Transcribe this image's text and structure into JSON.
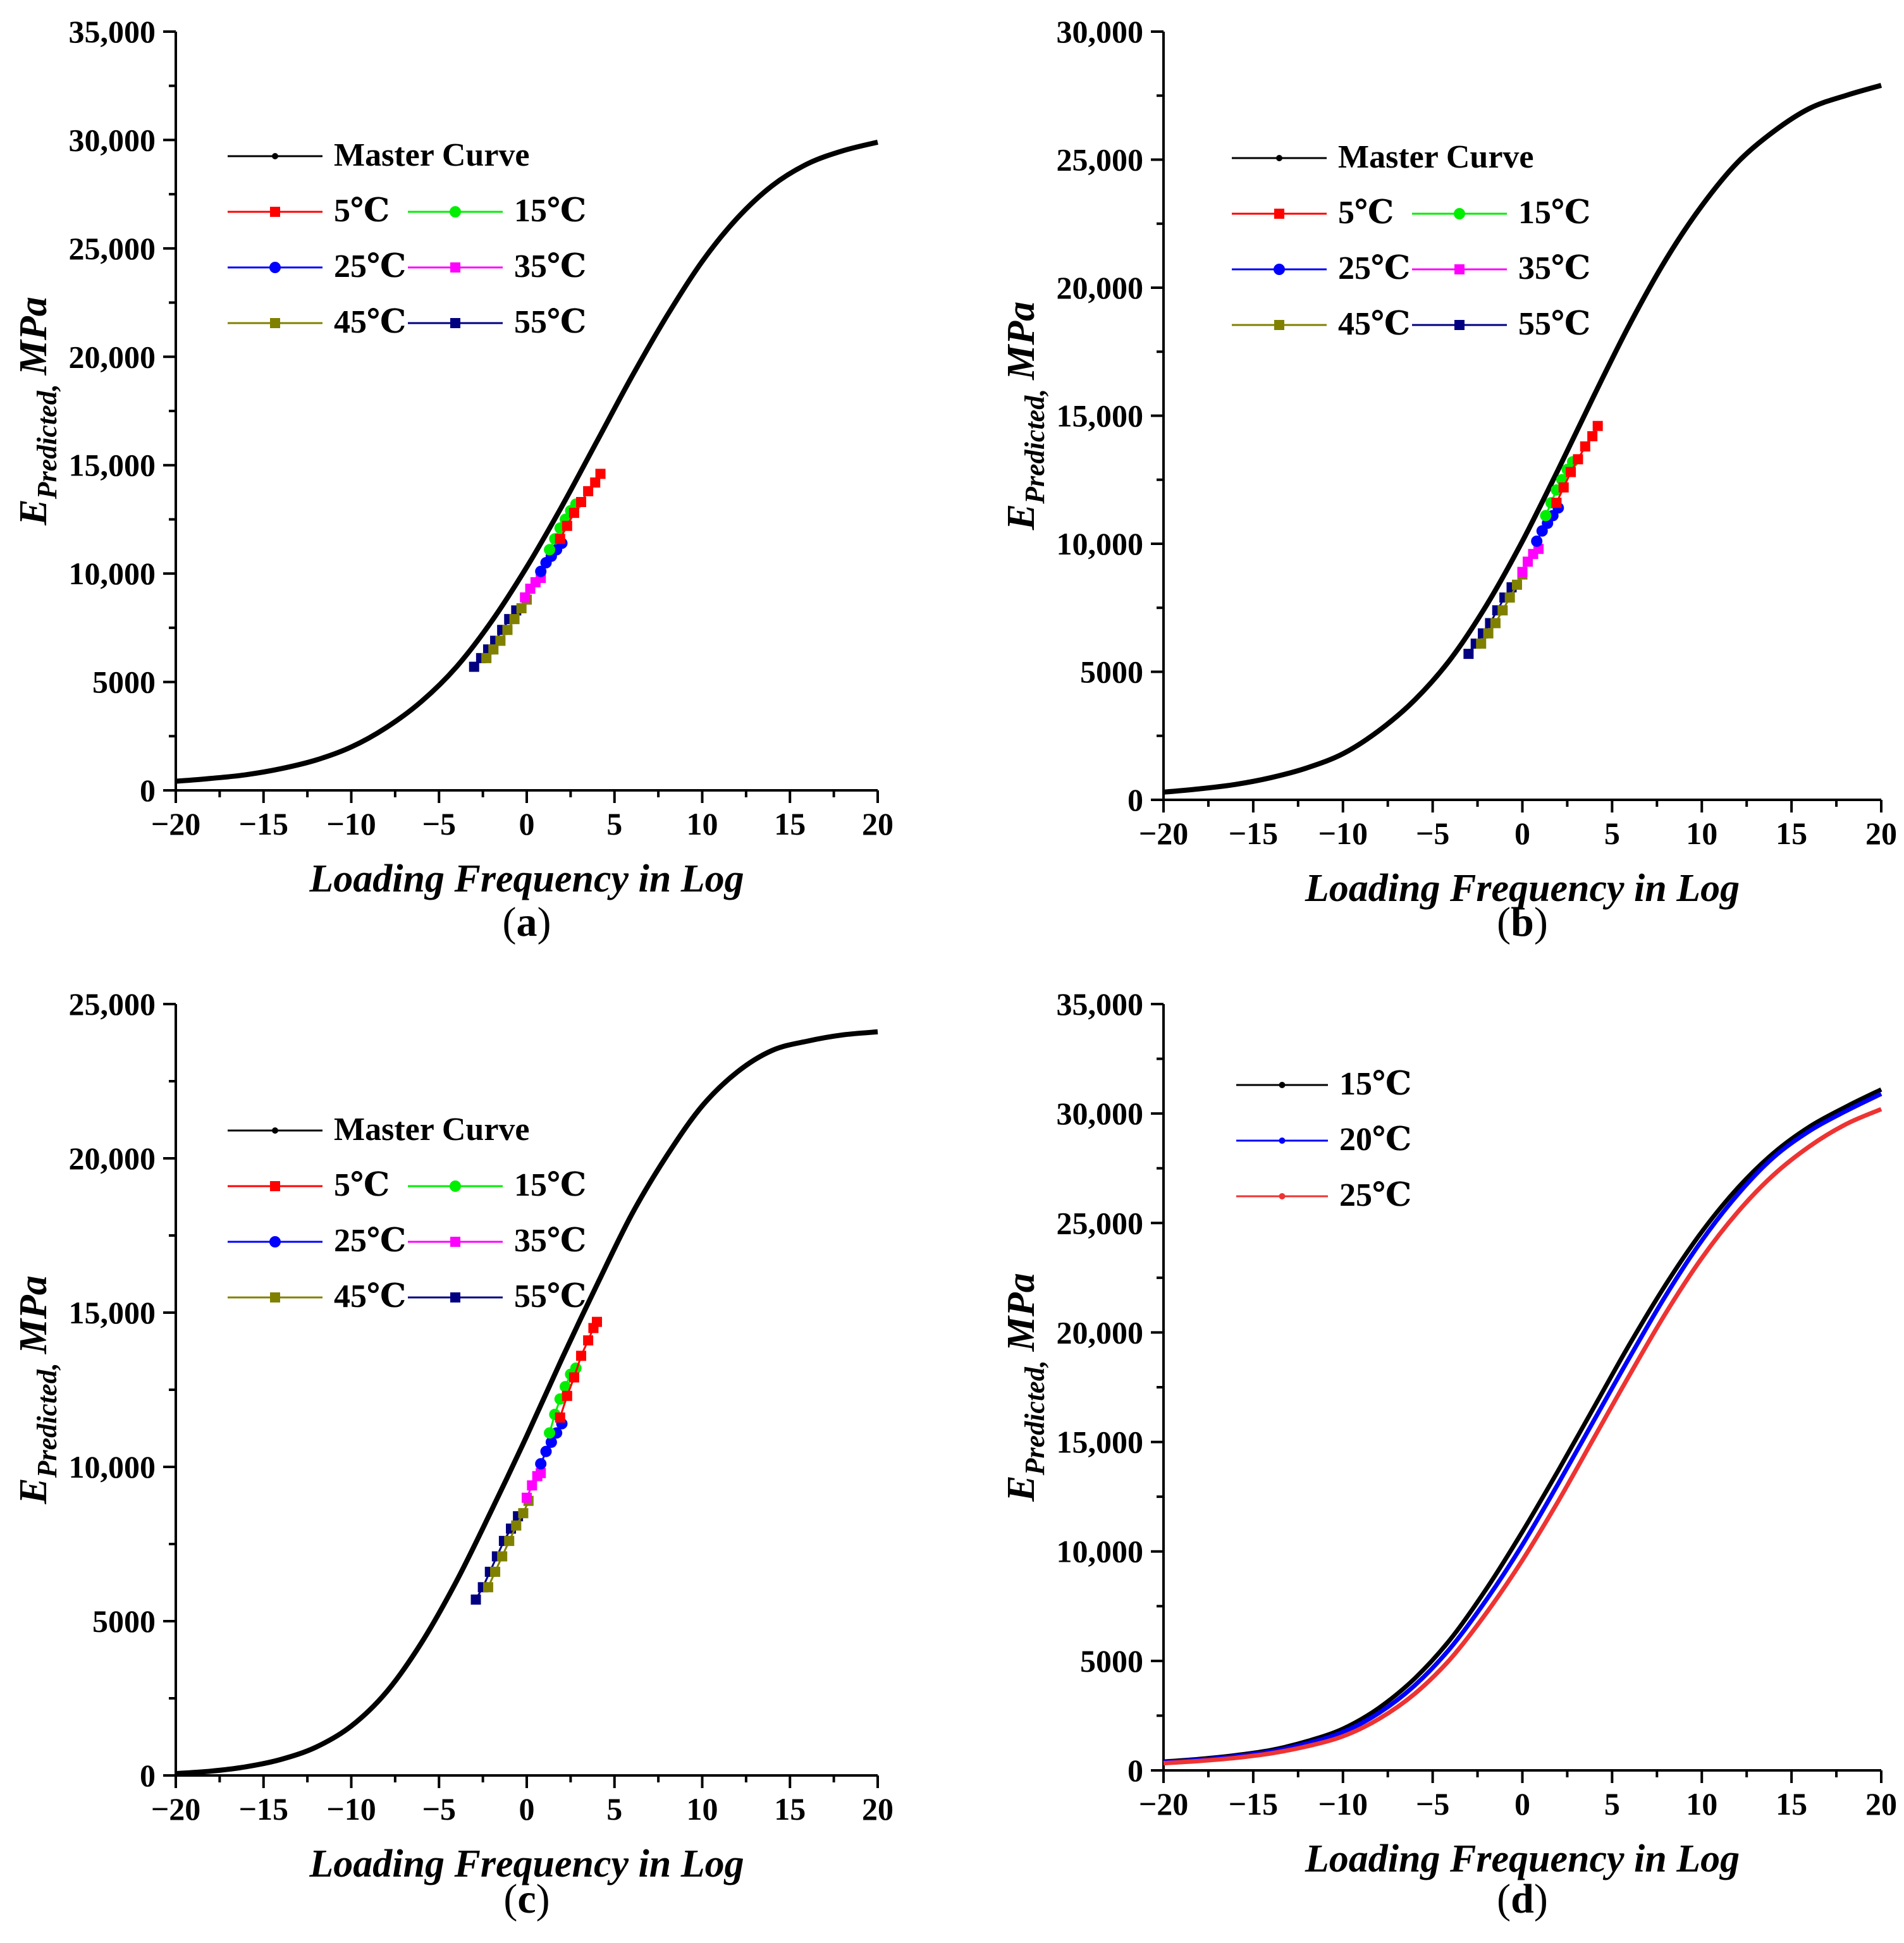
{
  "chart_data": [
    {
      "panel": "a",
      "panel_label": "a",
      "type": "line",
      "xlabel": "Loading Frequency in Log",
      "ylabel_main": "E",
      "ylabel_sub": "Predicted,",
      "ylabel_unit": "MPa",
      "xlim": [
        -20,
        20
      ],
      "ylim": [
        0,
        35000
      ],
      "xticks": [
        -20,
        -15,
        -10,
        -5,
        0,
        5,
        10,
        15,
        20
      ],
      "xtick_labels": [
        "−20",
        "−15",
        "−10",
        "−5",
        "0",
        "5",
        "10",
        "15",
        "20"
      ],
      "yticks": [
        0,
        5000,
        10000,
        15000,
        20000,
        25000,
        30000,
        35000
      ],
      "ytick_labels": [
        "0",
        "5000",
        "10,000",
        "15,000",
        "20,000",
        "25,000",
        "30,000",
        "35,000"
      ],
      "legend": [
        {
          "name": "Master Curve",
          "color": "#000000",
          "marker": "dot"
        },
        {
          "name": "5℃",
          "color": "#ff0000",
          "marker": "square"
        },
        {
          "name": "15℃",
          "color": "#00ee00",
          "marker": "circle"
        },
        {
          "name": "25℃",
          "color": "#0000ff",
          "marker": "circle"
        },
        {
          "name": "35℃",
          "color": "#ff00ff",
          "marker": "square"
        },
        {
          "name": "45℃",
          "color": "#808000",
          "marker": "square"
        },
        {
          "name": "55℃",
          "color": "#000080",
          "marker": "square"
        }
      ],
      "master_curve": {
        "name": "Master Curve",
        "color": "#000000",
        "x": [
          -20,
          -18,
          -16,
          -14,
          -12,
          -10,
          -8,
          -6,
          -4,
          -2,
          0,
          2,
          4,
          6,
          8,
          10,
          12,
          14,
          16,
          18,
          20
        ],
        "y": [
          420,
          550,
          720,
          1000,
          1400,
          2000,
          2900,
          4100,
          5700,
          7800,
          10300,
          13100,
          16100,
          19100,
          21900,
          24400,
          26400,
          27900,
          28900,
          29500,
          29900
        ]
      },
      "series": [
        {
          "name": "55℃",
          "color": "#000080",
          "marker": "square",
          "x": [
            -3.0,
            -2.6,
            -2.2,
            -1.8,
            -1.4,
            -1.0,
            -0.6
          ],
          "y": [
            5700,
            6100,
            6500,
            6900,
            7400,
            7900,
            8300
          ]
        },
        {
          "name": "45℃",
          "color": "#808000",
          "marker": "square",
          "x": [
            -2.3,
            -1.9,
            -1.5,
            -1.1,
            -0.7,
            -0.3,
            0.0
          ],
          "y": [
            6100,
            6500,
            6900,
            7400,
            7900,
            8400,
            8800
          ]
        },
        {
          "name": "35℃",
          "color": "#ff00ff",
          "marker": "square",
          "x": [
            -0.1,
            0.2,
            0.5,
            0.8
          ],
          "y": [
            8900,
            9300,
            9600,
            9800
          ]
        },
        {
          "name": "25℃",
          "color": "#0000ff",
          "marker": "circle",
          "x": [
            0.8,
            1.1,
            1.4,
            1.7,
            2.0
          ],
          "y": [
            10100,
            10500,
            10800,
            11100,
            11400
          ]
        },
        {
          "name": "15℃",
          "color": "#00ee00",
          "marker": "circle",
          "x": [
            1.3,
            1.6,
            1.9,
            2.2,
            2.5,
            2.8
          ],
          "y": [
            11100,
            11600,
            12100,
            12500,
            12900,
            13200
          ]
        },
        {
          "name": "5℃",
          "color": "#ff0000",
          "marker": "square",
          "x": [
            1.9,
            2.3,
            2.7,
            3.1,
            3.5,
            3.9,
            4.2
          ],
          "y": [
            11600,
            12200,
            12800,
            13300,
            13800,
            14200,
            14600
          ]
        }
      ]
    },
    {
      "panel": "b",
      "panel_label": "b",
      "type": "line",
      "xlabel": "Loading Frequency in Log",
      "ylabel_main": "E",
      "ylabel_sub": "Predicted,",
      "ylabel_unit": "MPa",
      "xlim": [
        -20,
        20
      ],
      "ylim": [
        0,
        30000
      ],
      "xticks": [
        -20,
        -15,
        -10,
        -5,
        0,
        5,
        10,
        15,
        20
      ],
      "xtick_labels": [
        "−20",
        "−15",
        "−10",
        "−5",
        "0",
        "5",
        "10",
        "15",
        "20"
      ],
      "yticks": [
        0,
        5000,
        10000,
        15000,
        20000,
        25000,
        30000
      ],
      "ytick_labels": [
        "0",
        "5000",
        "10,000",
        "15,000",
        "20,000",
        "25,000",
        "30,000"
      ],
      "legend": [
        {
          "name": "Master Curve",
          "color": "#000000",
          "marker": "dot"
        },
        {
          "name": "5℃",
          "color": "#ff0000",
          "marker": "square"
        },
        {
          "name": "15℃",
          "color": "#00ee00",
          "marker": "circle"
        },
        {
          "name": "25℃",
          "color": "#0000ff",
          "marker": "circle"
        },
        {
          "name": "35℃",
          "color": "#ff00ff",
          "marker": "square"
        },
        {
          "name": "45℃",
          "color": "#808000",
          "marker": "square"
        },
        {
          "name": "55℃",
          "color": "#000080",
          "marker": "square"
        }
      ],
      "master_curve": {
        "name": "Master Curve",
        "color": "#000000",
        "x": [
          -20,
          -18,
          -16,
          -14,
          -12,
          -10,
          -8,
          -6,
          -4,
          -2,
          0,
          2,
          4,
          6,
          8,
          10,
          12,
          14,
          16,
          18,
          20
        ],
        "y": [
          300,
          430,
          600,
          870,
          1250,
          1800,
          2700,
          3900,
          5500,
          7600,
          10100,
          12900,
          15800,
          18600,
          21100,
          23200,
          24900,
          26100,
          27000,
          27500,
          27900
        ]
      },
      "series": [
        {
          "name": "55℃",
          "color": "#000080",
          "marker": "square",
          "x": [
            -3.0,
            -2.6,
            -2.2,
            -1.8,
            -1.4,
            -1.0,
            -0.6
          ],
          "y": [
            5700,
            6100,
            6500,
            6900,
            7400,
            7900,
            8300
          ]
        },
        {
          "name": "45℃",
          "color": "#808000",
          "marker": "square",
          "x": [
            -2.3,
            -1.9,
            -1.5,
            -1.1,
            -0.7,
            -0.3,
            0.0
          ],
          "y": [
            6100,
            6500,
            6900,
            7400,
            7900,
            8400,
            8800
          ]
        },
        {
          "name": "35℃",
          "color": "#ff00ff",
          "marker": "square",
          "x": [
            0.0,
            0.3,
            0.6,
            0.9
          ],
          "y": [
            8900,
            9300,
            9600,
            9800
          ]
        },
        {
          "name": "25℃",
          "color": "#0000ff",
          "marker": "circle",
          "x": [
            0.8,
            1.1,
            1.4,
            1.7,
            2.0
          ],
          "y": [
            10100,
            10500,
            10800,
            11100,
            11400
          ]
        },
        {
          "name": "15℃",
          "color": "#00ee00",
          "marker": "circle",
          "x": [
            1.3,
            1.6,
            1.9,
            2.2,
            2.5,
            2.8
          ],
          "y": [
            11100,
            11600,
            12100,
            12500,
            12900,
            13200
          ]
        },
        {
          "name": "5℃",
          "color": "#ff0000",
          "marker": "square",
          "x": [
            1.9,
            2.3,
            2.7,
            3.1,
            3.5,
            3.9,
            4.2
          ],
          "y": [
            11600,
            12200,
            12800,
            13300,
            13800,
            14200,
            14600
          ]
        }
      ]
    },
    {
      "panel": "c",
      "panel_label": "c",
      "type": "line",
      "xlabel": "Loading Frequency in Log",
      "ylabel_main": "E",
      "ylabel_sub": "Predicted,",
      "ylabel_unit": "MPa",
      "xlim": [
        -20,
        20
      ],
      "ylim": [
        0,
        25000
      ],
      "xticks": [
        -20,
        -15,
        -10,
        -5,
        0,
        5,
        10,
        15,
        20
      ],
      "xtick_labels": [
        "−20",
        "−15",
        "−10",
        "−5",
        "0",
        "5",
        "10",
        "15",
        "20"
      ],
      "yticks": [
        0,
        5000,
        10000,
        15000,
        20000,
        25000
      ],
      "ytick_labels": [
        "0",
        "5000",
        "10,000",
        "15,000",
        "20,000",
        "25,000"
      ],
      "legend": [
        {
          "name": "Master Curve",
          "color": "#000000",
          "marker": "dot"
        },
        {
          "name": "5℃",
          "color": "#ff0000",
          "marker": "square"
        },
        {
          "name": "15℃",
          "color": "#00ee00",
          "marker": "circle"
        },
        {
          "name": "25℃",
          "color": "#0000ff",
          "marker": "circle"
        },
        {
          "name": "35℃",
          "color": "#ff00ff",
          "marker": "square"
        },
        {
          "name": "45℃",
          "color": "#808000",
          "marker": "square"
        },
        {
          "name": "55℃",
          "color": "#000080",
          "marker": "square"
        }
      ],
      "master_curve": {
        "name": "Master Curve",
        "color": "#000000",
        "x": [
          -20,
          -18,
          -16,
          -14,
          -12,
          -10,
          -8,
          -6,
          -4,
          -2,
          0,
          2,
          4,
          6,
          8,
          10,
          12,
          14,
          16,
          18,
          20
        ],
        "y": [
          60,
          140,
          280,
          520,
          920,
          1600,
          2700,
          4300,
          6300,
          8600,
          11000,
          13500,
          15900,
          18200,
          20100,
          21700,
          22800,
          23500,
          23800,
          24000,
          24100
        ]
      },
      "series": [
        {
          "name": "55℃",
          "color": "#000080",
          "marker": "square",
          "x": [
            -2.9,
            -2.5,
            -2.1,
            -1.7,
            -1.3,
            -0.9,
            -0.5
          ],
          "y": [
            5700,
            6100,
            6600,
            7100,
            7600,
            8000,
            8400
          ]
        },
        {
          "name": "45℃",
          "color": "#808000",
          "marker": "square",
          "x": [
            -2.2,
            -1.8,
            -1.4,
            -1.0,
            -0.6,
            -0.2,
            0.1
          ],
          "y": [
            6100,
            6600,
            7100,
            7600,
            8100,
            8500,
            8900
          ]
        },
        {
          "name": "35℃",
          "color": "#ff00ff",
          "marker": "square",
          "x": [
            0.0,
            0.3,
            0.6,
            0.8
          ],
          "y": [
            9000,
            9400,
            9700,
            9800
          ]
        },
        {
          "name": "25℃",
          "color": "#0000ff",
          "marker": "circle",
          "x": [
            0.8,
            1.1,
            1.4,
            1.7,
            2.0
          ],
          "y": [
            10100,
            10500,
            10800,
            11100,
            11400
          ]
        },
        {
          "name": "15℃",
          "color": "#00ee00",
          "marker": "circle",
          "x": [
            1.3,
            1.6,
            1.9,
            2.2,
            2.5,
            2.8
          ],
          "y": [
            11100,
            11700,
            12200,
            12600,
            13000,
            13200
          ]
        },
        {
          "name": "5℃",
          "color": "#ff0000",
          "marker": "square",
          "x": [
            1.9,
            2.3,
            2.7,
            3.1,
            3.5,
            3.8,
            4.0
          ],
          "y": [
            11600,
            12300,
            12900,
            13600,
            14100,
            14500,
            14700
          ]
        }
      ]
    },
    {
      "panel": "d",
      "panel_label": "d",
      "type": "line",
      "xlabel": "Loading Frequency in Log",
      "ylabel_main": "E",
      "ylabel_sub": "Predicted,",
      "ylabel_unit": "MPa",
      "xlim": [
        -20,
        20
      ],
      "ylim": [
        0,
        35000
      ],
      "xticks": [
        -20,
        -15,
        -10,
        -5,
        0,
        5,
        10,
        15,
        20
      ],
      "xtick_labels": [
        "−20",
        "−15",
        "−10",
        "−5",
        "0",
        "5",
        "10",
        "15",
        "20"
      ],
      "yticks": [
        0,
        5000,
        10000,
        15000,
        20000,
        25000,
        30000,
        35000
      ],
      "ytick_labels": [
        "0",
        "5000",
        "10,000",
        "15,000",
        "20,000",
        "25,000",
        "30,000",
        "35,000"
      ],
      "legend": [
        {
          "name": "15℃",
          "color": "#000000",
          "marker": "dot"
        },
        {
          "name": "20℃",
          "color": "#0000ff",
          "marker": "dot"
        },
        {
          "name": "25℃",
          "color": "#ee3333",
          "marker": "dot"
        }
      ],
      "series": [
        {
          "name": "15℃",
          "color": "#000000",
          "marker": "none",
          "x": [
            -20,
            -18,
            -16,
            -14,
            -12,
            -10,
            -8,
            -6,
            -4,
            -2,
            0,
            2,
            4,
            6,
            8,
            10,
            12,
            14,
            16,
            18,
            20
          ],
          "y": [
            400,
            520,
            690,
            930,
            1330,
            1900,
            2850,
            4200,
            6000,
            8300,
            10900,
            13700,
            16600,
            19500,
            22200,
            24600,
            26600,
            28200,
            29400,
            30300,
            31100
          ]
        },
        {
          "name": "20℃",
          "color": "#0000ff",
          "marker": "none",
          "x": [
            -20,
            -18,
            -16,
            -14,
            -12,
            -10,
            -8,
            -6,
            -4,
            -2,
            0,
            2,
            4,
            6,
            8,
            10,
            12,
            14,
            16,
            18,
            20
          ],
          "y": [
            370,
            480,
            640,
            860,
            1230,
            1750,
            2620,
            3880,
            5600,
            7800,
            10300,
            13100,
            16000,
            18900,
            21700,
            24200,
            26300,
            28000,
            29200,
            30100,
            30900
          ]
        },
        {
          "name": "25℃",
          "color": "#ee3333",
          "marker": "none",
          "x": [
            -20,
            -18,
            -16,
            -14,
            -12,
            -10,
            -8,
            -6,
            -4,
            -2,
            0,
            2,
            4,
            6,
            8,
            10,
            12,
            14,
            16,
            18,
            20
          ],
          "y": [
            330,
            430,
            570,
            780,
            1100,
            1560,
            2350,
            3500,
            5100,
            7200,
            9600,
            12300,
            15200,
            18100,
            20900,
            23400,
            25500,
            27200,
            28500,
            29500,
            30200
          ]
        }
      ]
    }
  ]
}
